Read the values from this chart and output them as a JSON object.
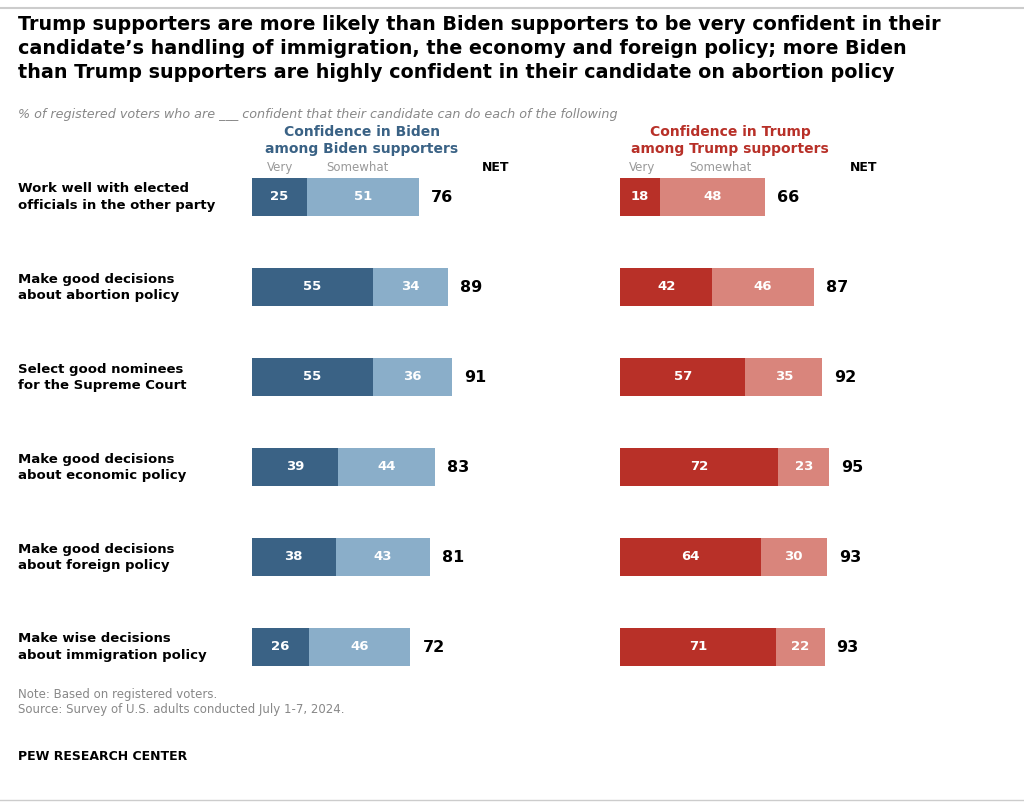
{
  "title": "Trump supporters are more likely than Biden supporters to be very confident in their\ncandidate’s handling of immigration, the economy and foreign policy; more Biden\nthan Trump supporters are highly confident in their candidate on abortion policy",
  "subtitle": "% of registered voters who are ___ confident that their candidate can do each of the following",
  "biden_header_line1": "Confidence in Biden",
  "biden_header_line2": "among Biden supporters",
  "trump_header_line1": "Confidence in Trump",
  "trump_header_line2": "among Trump supporters",
  "categories": [
    "Work well with elected\nofficials in the other party",
    "Make good decisions\nabout abortion policy",
    "Select good nominees\nfor the Supreme Court",
    "Make good decisions\nabout economic policy",
    "Make good decisions\nabout foreign policy",
    "Make wise decisions\nabout immigration policy"
  ],
  "biden_very": [
    25,
    55,
    55,
    39,
    38,
    26
  ],
  "biden_somewhat": [
    51,
    34,
    36,
    44,
    43,
    46
  ],
  "biden_net": [
    76,
    89,
    91,
    83,
    81,
    72
  ],
  "trump_very": [
    18,
    42,
    57,
    72,
    64,
    71
  ],
  "trump_somewhat": [
    48,
    46,
    35,
    23,
    30,
    22
  ],
  "trump_net": [
    66,
    87,
    92,
    95,
    93,
    93
  ],
  "biden_very_color": "#3a6285",
  "biden_somewhat_color": "#8aaec9",
  "trump_very_color": "#b83028",
  "trump_somewhat_color": "#d9857c",
  "biden_header_color": "#3a6285",
  "trump_header_color": "#b83028",
  "note": "Note: Based on registered voters.\nSource: Survey of U.S. adults conducted July 1-7, 2024.",
  "footer": "PEW RESEARCH CENTER",
  "background_color": "#ffffff",
  "top_line_color": "#cccccc",
  "bottom_line_color": "#cccccc"
}
